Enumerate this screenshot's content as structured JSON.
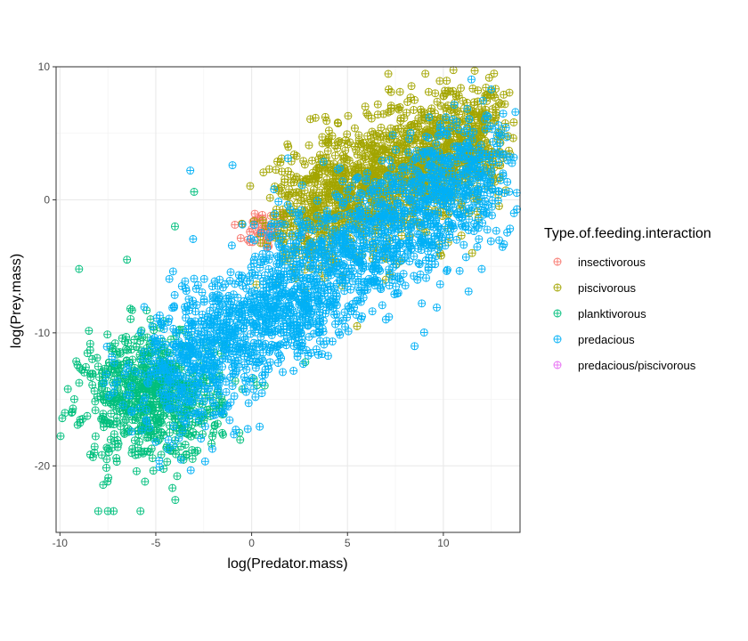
{
  "chart_data": {
    "type": "scatter",
    "title": "",
    "xlabel": "log(Predator.mass)",
    "ylabel": "log(Prey.mass)",
    "xlim": [
      -10.2,
      14.0
    ],
    "ylim": [
      -25.0,
      10.0
    ],
    "x_ticks": [
      -10,
      -5,
      0,
      5,
      10
    ],
    "y_ticks": [
      -20,
      -10,
      0,
      10
    ],
    "grid": true,
    "theme": "bw",
    "marker": "circle-plus",
    "legend": {
      "title": "Type.of.feeding.interaction",
      "position": "right"
    },
    "series": [
      {
        "name": "insectivorous",
        "color": "#F8766D",
        "center": [
          0.6,
          -2.2
        ],
        "spread": [
          0.8,
          0.8
        ],
        "count": 40,
        "points": [
          [
            0.5,
            -2.5
          ],
          [
            0.8,
            -2.0
          ],
          [
            1.0,
            -1.2
          ],
          [
            -0.2,
            -3.0
          ],
          [
            0.3,
            -1.6
          ],
          [
            1.2,
            -2.4
          ]
        ]
      },
      {
        "name": "piscivorous",
        "color": "#A3A500",
        "center": [
          6.2,
          -0.5
        ],
        "spread": [
          3.0,
          3.2
        ],
        "count": 1500,
        "points": [
          [
            4.2,
            4.8
          ],
          [
            6.0,
            6.5
          ],
          [
            8.5,
            7.5
          ],
          [
            10.0,
            7.8
          ],
          [
            12.5,
            8.2
          ],
          [
            12.0,
            6.0
          ],
          [
            7.0,
            -6.0
          ],
          [
            5.5,
            -9.5
          ],
          [
            2.0,
            -1.0
          ],
          [
            3.0,
            -4.0
          ],
          [
            -0.5,
            -1.8
          ],
          [
            1.5,
            2.8
          ],
          [
            11.5,
            -4.0
          ]
        ]
      },
      {
        "name": "planktivorous",
        "color": "#00BF7D",
        "center": [
          -5.2,
          -14.8
        ],
        "spread": [
          1.8,
          2.4
        ],
        "count": 700,
        "points": [
          [
            -9.0,
            -5.2
          ],
          [
            -8.0,
            -23.4
          ],
          [
            -7.5,
            -23.4
          ],
          [
            -7.2,
            -23.4
          ],
          [
            -5.8,
            -23.4
          ],
          [
            -6.0,
            -20.4
          ],
          [
            -8.2,
            -19.0
          ],
          [
            -7.0,
            -12.4
          ],
          [
            -4.0,
            -2.0
          ],
          [
            -2.0,
            -12.5
          ],
          [
            -1.5,
            -15.2
          ],
          [
            -4.0,
            -16.5
          ],
          [
            -6.5,
            -4.5
          ],
          [
            -3.0,
            0.6
          ],
          [
            2.8,
            -12.2
          ]
        ]
      },
      {
        "name": "predacious",
        "color": "#00B0F6",
        "center": [
          2.0,
          -6.0
        ],
        "spread": [
          4.5,
          5.0
        ],
        "count": 2000,
        "points": [
          [
            -5.0,
            -18.2
          ],
          [
            -3.2,
            2.2
          ],
          [
            -1.0,
            2.6
          ],
          [
            -1.5,
            -8.0
          ],
          [
            -1.0,
            -14.0
          ],
          [
            -3.0,
            -14.0
          ],
          [
            -2.0,
            -16.2
          ],
          [
            5.0,
            -6.5
          ],
          [
            7.0,
            -9.0
          ],
          [
            9.0,
            3.5
          ],
          [
            12.5,
            8.3
          ],
          [
            12.0,
            -5.2
          ],
          [
            11.0,
            -2.0
          ],
          [
            8.5,
            -11.0
          ],
          [
            3.5,
            -10.0
          ],
          [
            -3.5,
            -11.0
          ],
          [
            1.0,
            -2.0
          ]
        ]
      },
      {
        "name": "predacious/piscivorous",
        "color": "#E76BF3",
        "center": [
          4.0,
          0.0
        ],
        "spread": [
          0.5,
          0.5
        ],
        "count": 0,
        "points": []
      }
    ]
  }
}
